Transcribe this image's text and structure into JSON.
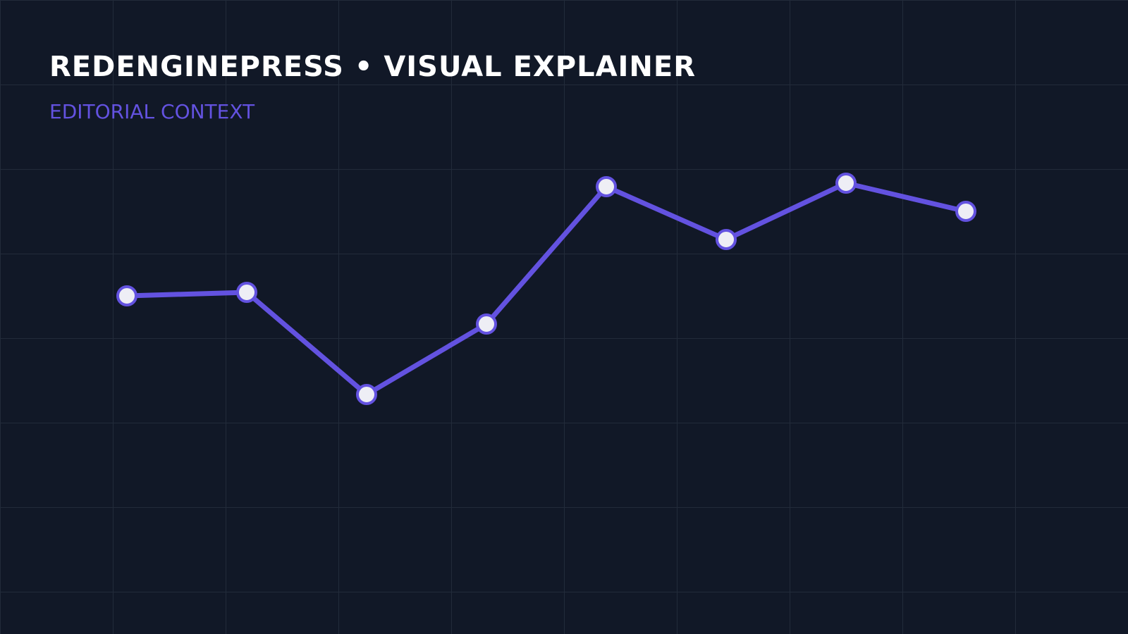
{
  "chart_data": {
    "type": "line",
    "title": "REDENGINEPRESS • VISUAL EXPLAINER",
    "subtitle": "EDITORIAL CONTEXT",
    "categories": [
      null,
      null,
      null,
      null,
      null,
      null,
      null,
      null
    ],
    "values": [
      56,
      57,
      28,
      48,
      87,
      72,
      88,
      80
    ],
    "color": "#6352e0",
    "ylim": [
      0,
      100
    ]
  }
}
